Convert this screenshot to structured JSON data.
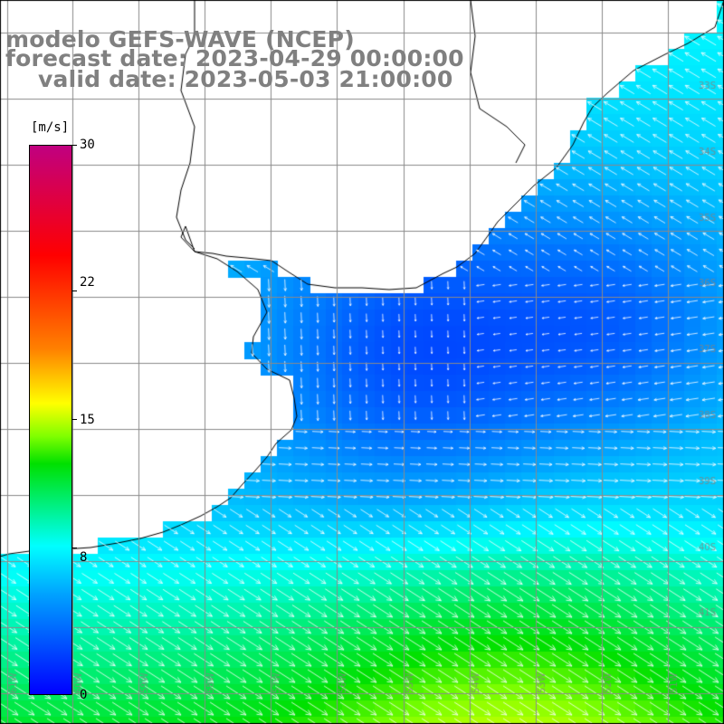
{
  "title": {
    "model": "modelo GEFS-WAVE (NCEP)",
    "forecast": "forecast date: 2023-04-29 00:00:00",
    "valid": "valid date: 2023-05-03 21:00:00"
  },
  "colorbar": {
    "unit": "[m/s]",
    "min": 0,
    "max": 30,
    "ticks": [
      "30",
      "22",
      "15",
      "8",
      "0"
    ],
    "tick_values": [
      30,
      22,
      15,
      8,
      0
    ],
    "colors": [
      "#0000ff",
      "#00a0ff",
      "#00ffff",
      "#00e000",
      "#7fff00",
      "#ffff00",
      "#ff8000",
      "#ff0000",
      "#c00080"
    ]
  },
  "map": {
    "variable": "wind speed and direction",
    "grid": true,
    "land_color": "#ffffff",
    "coastline_color": "#000000",
    "arrow_color": "#ffffff",
    "lon_labels": [
      "61W",
      "60W",
      "59W",
      "58W",
      "57W",
      "56W",
      "55W",
      "54W",
      "53W",
      "52W",
      "51W"
    ],
    "lat_labels": [
      "33S",
      "34S",
      "35S",
      "36S",
      "37S",
      "38S",
      "39S",
      "40S",
      "41S"
    ]
  }
}
